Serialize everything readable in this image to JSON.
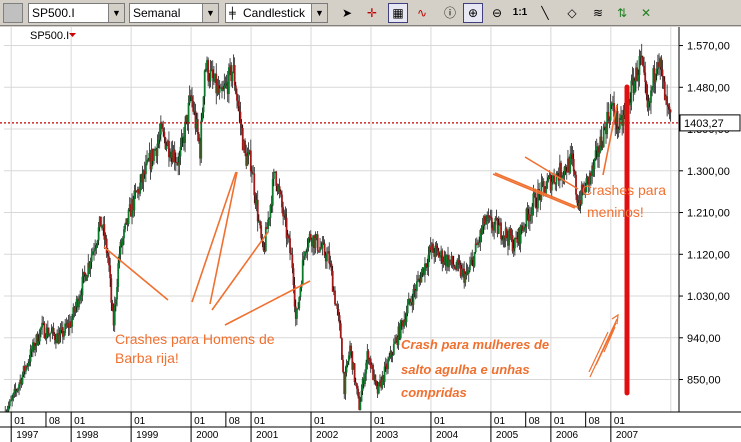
{
  "toolbar": {
    "symbol": "SP500.I",
    "period": "Semanal",
    "chart_style": "Candlestick",
    "icons": [
      "cursor-arrow-icon",
      "crosshair-icon",
      "grid-icon",
      "indicator-wave-icon",
      "info-icon",
      "zoom-icon",
      "zoom-reset-icon",
      "trendline-icon",
      "eraser-icon",
      "fibonacci-icon",
      "up-down-arrows-icon",
      "delete-icon"
    ],
    "zoom_reset_label": "1:1"
  },
  "chart_data": {
    "type": "candlestick",
    "symbol_label": "SP500.I",
    "last_value": 1403.27,
    "last_value_label": "1403,27",
    "ylim": [
      780,
      1610
    ],
    "y_ticks": [
      1570,
      1480,
      1390,
      1300,
      1210,
      1120,
      1030,
      940,
      850
    ],
    "y_tick_labels": [
      "1.570,00",
      "1.480,00",
      "1.390,00",
      "1.300,00",
      "1.210,00",
      "1.120,00",
      "1.030,00",
      "940,00",
      "850,00"
    ],
    "x_years": [
      "1997",
      "1998",
      "1999",
      "2000",
      "2001",
      "2002",
      "2003",
      "2004",
      "2005",
      "2006",
      "2007"
    ],
    "x_month_labels": [
      "01",
      "08",
      "01",
      "01",
      "01",
      "08",
      "01",
      "01",
      "01",
      "01",
      "01",
      "08",
      "01",
      "08",
      "01"
    ],
    "price_path": [
      [
        1996.9,
        780
      ],
      [
        1997.0,
        800
      ],
      [
        1997.5,
        960
      ],
      [
        1997.8,
        940
      ],
      [
        1998.0,
        975
      ],
      [
        1998.5,
        1190
      ],
      [
        1998.62,
        1110
      ],
      [
        1998.7,
        960
      ],
      [
        1998.8,
        1120
      ],
      [
        1999.0,
        1220
      ],
      [
        1999.5,
        1380
      ],
      [
        1999.8,
        1320
      ],
      [
        2000.0,
        1460
      ],
      [
        2000.15,
        1345
      ],
      [
        2000.23,
        1530
      ],
      [
        2000.5,
        1455
      ],
      [
        2000.7,
        1520
      ],
      [
        2000.9,
        1330
      ],
      [
        2001.0,
        1320
      ],
      [
        2001.2,
        1115
      ],
      [
        2001.4,
        1300
      ],
      [
        2001.7,
        1090
      ],
      [
        2001.75,
        970
      ],
      [
        2001.9,
        1140
      ],
      [
        2002.0,
        1160
      ],
      [
        2002.3,
        1110
      ],
      [
        2002.5,
        940
      ],
      [
        2002.55,
        830
      ],
      [
        2002.65,
        920
      ],
      [
        2002.8,
        790
      ],
      [
        2002.95,
        910
      ],
      [
        2003.1,
        820
      ],
      [
        2003.3,
        890
      ],
      [
        2003.6,
        1000
      ],
      [
        2004.0,
        1130
      ],
      [
        2004.3,
        1105
      ],
      [
        2004.6,
        1070
      ],
      [
        2004.9,
        1190
      ],
      [
        2005.2,
        1170
      ],
      [
        2005.4,
        1140
      ],
      [
        2005.7,
        1230
      ],
      [
        2006.0,
        1280
      ],
      [
        2006.35,
        1320
      ],
      [
        2006.45,
        1230
      ],
      [
        2006.7,
        1300
      ],
      [
        2007.0,
        1440
      ],
      [
        2007.15,
        1390
      ],
      [
        2007.5,
        1540
      ],
      [
        2007.62,
        1420
      ],
      [
        2007.78,
        1560
      ],
      [
        2007.92,
        1440
      ],
      [
        2008.0,
        1403.27
      ]
    ],
    "annotations": [
      {
        "text": "Crashes para Homens de",
        "text2": "Barba rija!",
        "color": "#f07030"
      },
      {
        "text": "Crashes para",
        "text2": "meninos!",
        "color": "#f07030"
      },
      {
        "text": "Crash para mulheres de",
        "text2": "salto agulha e unhas",
        "text3": "compridas",
        "color": "#f07030"
      }
    ],
    "colors": {
      "up": "#0b7a2a",
      "down": "#a01818",
      "reference_line": "#c00000",
      "annotation": "#f07030",
      "crash_bar": "#e01010",
      "grid": "#d8d8d8"
    },
    "grid": true
  }
}
